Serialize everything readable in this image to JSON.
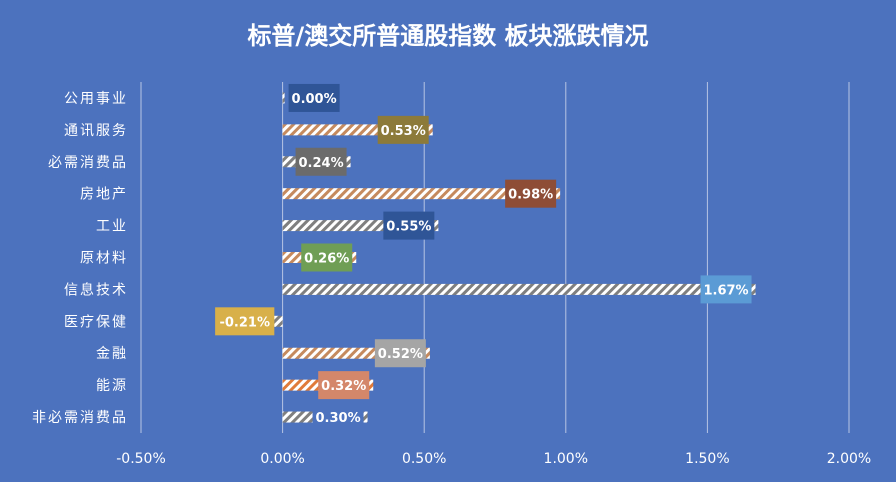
{
  "chart_data": {
    "type": "bar",
    "orientation": "horizontal",
    "title": "标普/澳交所普通股指数 板块涨跌情况",
    "categories": [
      "公用事业",
      "通讯服务",
      "必需消费品",
      "房地产",
      "工业",
      "原材料",
      "信息技术",
      "医疗保健",
      "金融",
      "能源",
      "非必需消费品"
    ],
    "values": [
      0.0,
      0.53,
      0.24,
      0.98,
      0.55,
      0.26,
      1.67,
      -0.21,
      0.52,
      0.32,
      0.3
    ],
    "value_labels": [
      "0.00%",
      "0.53%",
      "0.24%",
      "0.98%",
      "0.55%",
      "0.26%",
      "1.67%",
      "-0.21%",
      "0.52%",
      "0.32%",
      "0.30%"
    ],
    "label_colors": [
      "#2f5597",
      "#8c7a3a",
      "#6b6b6b",
      "#8e4d36",
      "#2f5597",
      "#6f9e55",
      "#5b9bd5",
      "#d8b04a",
      "#a5a5a5",
      "#d4876a",
      "#4c72be"
    ],
    "bar_stripe_colors": [
      "#7f7f7f",
      "#c58a5e",
      "#7f7f7f",
      "#c58a5e",
      "#7f7f7f",
      "#c58a5e",
      "#7f7f7f",
      "#7f7f7f",
      "#c58a5e",
      "#e07b3a",
      "#7f7f7f"
    ],
    "xlim": [
      -0.5,
      2.0
    ],
    "x_ticks": [
      -0.5,
      0.0,
      0.5,
      1.0,
      1.5,
      2.0
    ],
    "x_tick_labels": [
      "-0.50%",
      "0.00%",
      "0.50%",
      "1.00%",
      "1.50%",
      "2.00%"
    ],
    "grid": true,
    "background_color": "#4c72be",
    "text_color": "#ffffff",
    "grid_color": "#b7c5e4"
  }
}
